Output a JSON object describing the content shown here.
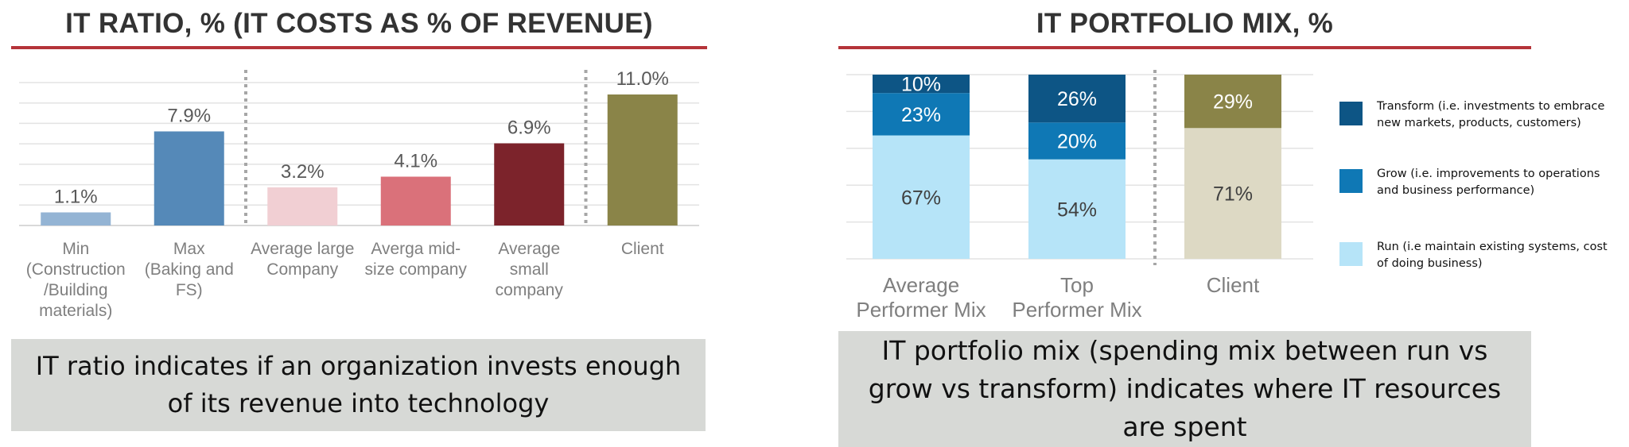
{
  "colors": {
    "title_rule": "#b5343a",
    "caption_bg": "#d7d9d6",
    "gridline": "#e3e3e3",
    "divider": "#a6a6a6",
    "transform": "#0d5585",
    "grow": "#0f78b5",
    "run": "#b6e4f8",
    "client_transform": "#8a8448",
    "client_run": "#ddd9c4"
  },
  "left": {
    "caption": "IT ratio indicates if an organization invests enough of its revenue into technology"
  },
  "right": {
    "caption": "IT portfolio mix (spending mix between run vs grow vs transform) indicates where IT resources are spent",
    "legend": [
      {
        "key": "transform",
        "label": "Transform (i.e. investments to embrace new markets, products, customers)"
      },
      {
        "key": "grow",
        "label": "Grow (i.e. improvements to operations and business performance)"
      },
      {
        "key": "run",
        "label": "Run (i.e maintain existing systems, cost of doing business)"
      }
    ]
  },
  "chart_data": [
    {
      "type": "bar",
      "title": "IT RATIO, % (IT COSTS AS % OF REVENUE)",
      "categories": [
        [
          "Min",
          "(Construction",
          "/Building",
          "materials)"
        ],
        [
          "Max",
          "(Baking and",
          "FS)"
        ],
        [
          "Average large",
          "Company"
        ],
        [
          "Averga mid-",
          "size company"
        ],
        [
          "Average",
          "small",
          "company"
        ],
        [
          "Client"
        ]
      ],
      "values": [
        1.1,
        7.9,
        3.2,
        4.1,
        6.9,
        11.0
      ],
      "value_labels": [
        "1.1%",
        "7.9%",
        "3.2%",
        "4.1%",
        "6.9%",
        "11.0%"
      ],
      "bar_colors": [
        "#94b4d4",
        "#5589b8",
        "#f1cfd3",
        "#da717a",
        "#7c232b",
        "#8a8448"
      ],
      "ylim": [
        0,
        12
      ],
      "grid": true,
      "dividers_after_category_index": [
        1,
        4
      ]
    },
    {
      "type": "bar",
      "stacked": true,
      "title": "IT PORTFOLIO MIX, %",
      "categories": [
        [
          "Average",
          "Performer Mix"
        ],
        [
          "Top",
          "Performer Mix"
        ],
        [
          "Client"
        ]
      ],
      "series": [
        {
          "name": "Run",
          "key": "run",
          "values": [
            67,
            54,
            71
          ],
          "labels": [
            "67%",
            "54%",
            "71%"
          ]
        },
        {
          "name": "Grow",
          "key": "grow",
          "values": [
            23,
            20,
            null
          ],
          "labels": [
            "23%",
            "20%",
            ""
          ]
        },
        {
          "name": "Transform",
          "key": "transform",
          "values": [
            10,
            26,
            29
          ],
          "labels": [
            "10%",
            "26%",
            "29%"
          ]
        }
      ],
      "ylim": [
        0,
        100
      ],
      "grid": true,
      "legend_position": "right",
      "dividers_after_category_index": [
        1
      ]
    }
  ]
}
